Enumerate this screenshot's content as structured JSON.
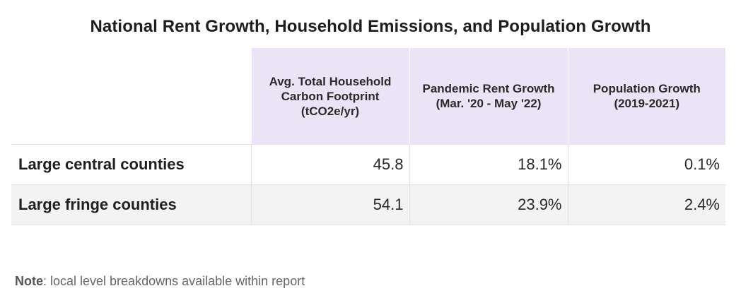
{
  "chart_data": {
    "type": "table",
    "title": "National Rent Growth, Household Emissions, and Population Growth",
    "columns": [
      "Avg. Total Household Carbon Footprint (tCO2e/yr)",
      "Pandemic Rent Growth (Mar. '20 - May '22)",
      "Population Growth (2019-2021)"
    ],
    "rows": [
      {
        "label": "Large central counties",
        "values": [
          "45.8",
          "18.1%",
          "0.1%"
        ]
      },
      {
        "label": "Large fringe counties",
        "values": [
          "54.1",
          "23.9%",
          "2.4%"
        ]
      }
    ],
    "header_color": "#ebe4f6",
    "alt_row_color": "#f3f3f3"
  },
  "note": {
    "label": "Note",
    "text": ": local level breakdowns available within report"
  }
}
